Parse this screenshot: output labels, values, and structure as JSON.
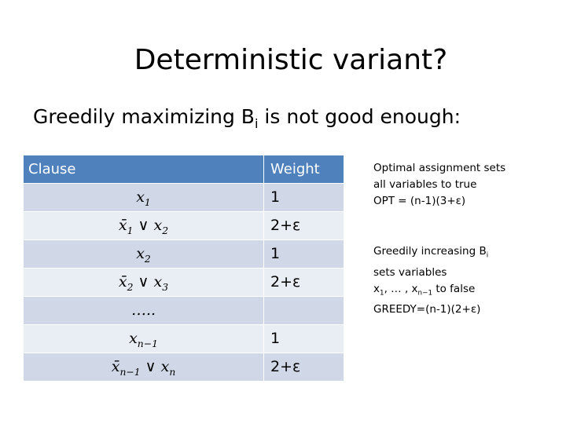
{
  "title": [
    {
      "t": "Deterministic variant?"
    }
  ],
  "subtitle": [
    {
      "t": "Greedily maximizing B",
      "sub": "i"
    },
    {
      "t": " is not good enough:"
    }
  ],
  "table": {
    "header": [
      "Clause",
      "Weight"
    ],
    "rows": [
      {
        "clause": [
          {
            "t": "x",
            "sub": "1"
          }
        ],
        "weight": "1"
      },
      {
        "clause": [
          {
            "t": "x̄",
            "sub": "1"
          },
          {
            "t": " ∨ "
          },
          {
            "t": "x",
            "sub": "2"
          }
        ],
        "weight": "2+ε"
      },
      {
        "clause": [
          {
            "t": "x",
            "sub": "2"
          }
        ],
        "weight": "1"
      },
      {
        "clause": [
          {
            "t": "x̄",
            "sub": "2"
          },
          {
            "t": " ∨ "
          },
          {
            "t": "x",
            "sub": "3"
          }
        ],
        "weight": "2+ε"
      },
      {
        "clause": [
          {
            "t": "….."
          }
        ]
      },
      {
        "clause": [
          {
            "t": "x",
            "sub": "n−1"
          }
        ],
        "weight": "1"
      },
      {
        "clause": [
          {
            "t": "x̄",
            "sub": "n−1"
          },
          {
            "t": " ∨ "
          },
          {
            "t": "x",
            "sub": "n"
          }
        ],
        "weight": "2+ε"
      }
    ]
  },
  "notes": [
    {
      "lines": [
        [
          {
            "t": "Optimal assignment sets"
          }
        ],
        [
          {
            "t": "all variables to true"
          }
        ],
        [
          {
            "t": "OPT = (n-1)(3+ε)"
          }
        ]
      ]
    },
    {
      "lines": [
        [
          {
            "t": "Greedily increasing B",
            "sub": "i"
          }
        ],
        [
          {
            "t": "sets variables"
          }
        ],
        [
          {
            "t": "x",
            "sub": "1"
          },
          {
            "t": ", … , "
          },
          {
            "t": "x",
            "sub": "n−1"
          },
          {
            "t": " to false"
          }
        ],
        [
          {
            "t": "GREEDY=(n-1)(2+ε)"
          }
        ]
      ]
    }
  ]
}
